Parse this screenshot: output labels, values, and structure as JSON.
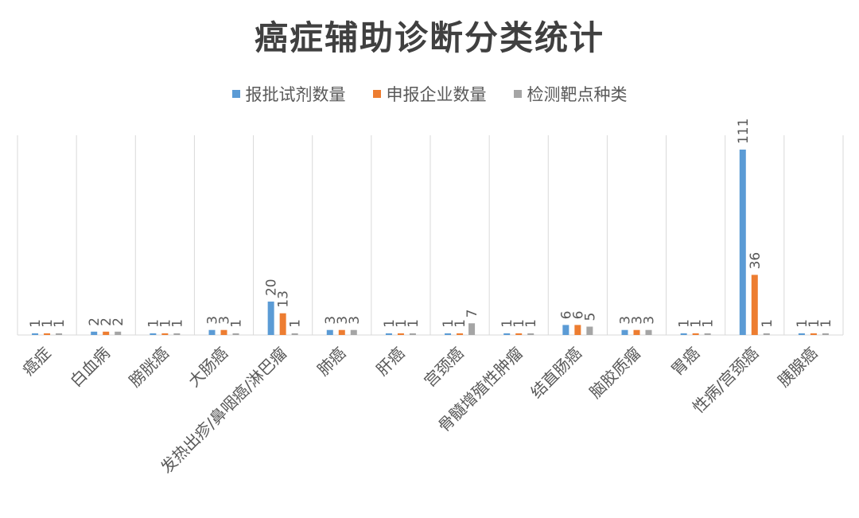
{
  "chart_data": {
    "type": "bar",
    "title": "癌症辅助诊断分类统计",
    "categories": [
      "癌症",
      "白血病",
      "膀胱癌",
      "大肠癌",
      "发热出疹/鼻咽癌/淋巴瘤",
      "肺癌",
      "肝癌",
      "宫颈癌",
      "骨髓增殖性肿瘤",
      "结直肠癌",
      "脑胶质瘤",
      "胃癌",
      "性病/宫颈癌",
      "胰腺癌"
    ],
    "series": [
      {
        "name": "报批试剂数量",
        "color": "#5B9BD5",
        "values": [
          1,
          2,
          1,
          3,
          20,
          3,
          1,
          1,
          1,
          6,
          3,
          1,
          111,
          1
        ]
      },
      {
        "name": "申报企业数量",
        "color": "#ED7D31",
        "values": [
          1,
          2,
          1,
          3,
          13,
          3,
          1,
          1,
          1,
          6,
          3,
          1,
          36,
          1
        ]
      },
      {
        "name": "检测靶点种类",
        "color": "#A5A5A5",
        "values": [
          1,
          2,
          1,
          1,
          1,
          3,
          1,
          7,
          1,
          5,
          3,
          1,
          1,
          1
        ]
      }
    ],
    "ylim": [
      0,
      120
    ],
    "legend_position": "top",
    "grid": "vertical category separators",
    "data_labels": true
  }
}
